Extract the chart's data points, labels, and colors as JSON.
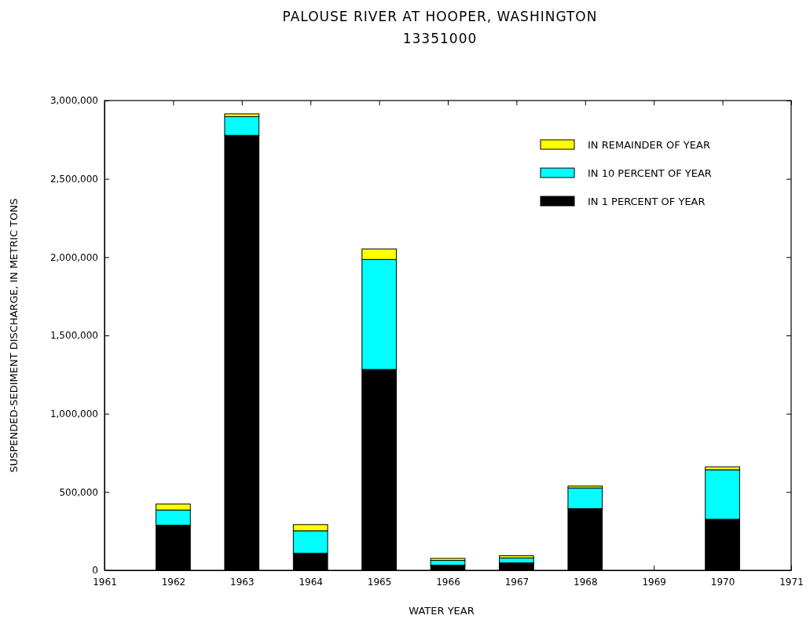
{
  "chart_data": {
    "type": "bar",
    "title": "PALOUSE RIVER AT HOOPER, WASHINGTON",
    "subtitle": "13351000",
    "xlabel": "WATER YEAR",
    "ylabel": "SUSPENDED-SEDIMENT DISCHARGE, IN METRIC TONS",
    "x": [
      1962,
      1963,
      1964,
      1965,
      1966,
      1967,
      1968,
      1970
    ],
    "stacked": true,
    "legend": "top right",
    "grid": false,
    "xlim": [
      1961,
      1971
    ],
    "xticks": [
      1961,
      1962,
      1963,
      1964,
      1965,
      1966,
      1967,
      1968,
      1969,
      1970,
      1971
    ],
    "ylim": [
      0,
      3000000
    ],
    "yticks": [
      {
        "value": 0,
        "label": "0"
      },
      {
        "value": 500000,
        "label": "500,000"
      },
      {
        "value": 1000000,
        "label": "1,000,000"
      },
      {
        "value": 1500000,
        "label": "1,500,000"
      },
      {
        "value": 2000000,
        "label": "2,000,000"
      },
      {
        "value": 2500000,
        "label": "2,500,000"
      },
      {
        "value": 3000000,
        "label": "3,000,000"
      }
    ],
    "series": [
      {
        "name": "IN 1 PERCENT OF YEAR",
        "color": "#000000",
        "values": [
          288000,
          2778000,
          109000,
          1283000,
          33000,
          48000,
          394000,
          326000
        ]
      },
      {
        "name": "IN 10 PERCENT OF YEAR",
        "color": "#00ffff",
        "values": [
          97000,
          119000,
          143000,
          702000,
          30000,
          31000,
          132000,
          316000
        ]
      },
      {
        "name": "IN REMAINDER OF YEAR",
        "color": "#ffff00",
        "values": [
          38000,
          18000,
          40000,
          67000,
          13000,
          14000,
          12000,
          19000
        ]
      }
    ]
  }
}
